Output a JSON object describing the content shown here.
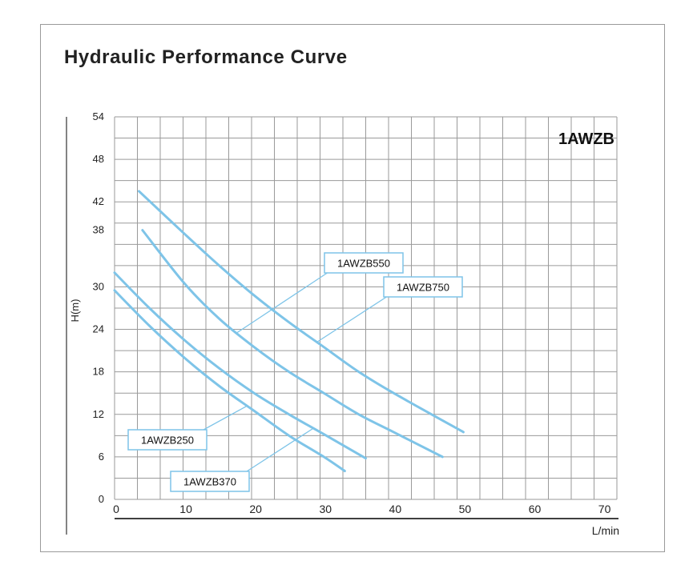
{
  "title": "Hydraulic Performance Curve",
  "chart_data": {
    "type": "line",
    "model_label": "1AWZB",
    "xlabel": "L/min",
    "ylabel": "H(m)",
    "xlim": [
      0,
      72
    ],
    "ylim": [
      0,
      54
    ],
    "x_ticks": [
      0,
      10,
      20,
      30,
      40,
      50,
      60,
      70
    ],
    "y_ticks": [
      0,
      6,
      12,
      18,
      24,
      30,
      38,
      42,
      48,
      54
    ],
    "grid": true,
    "curve_color": "#7ec4e8",
    "series": [
      {
        "name": "1AWZB250",
        "x": [
          0,
          5,
          10,
          15,
          20,
          25,
          30,
          33
        ],
        "y": [
          29.5,
          24.5,
          20,
          16,
          12.5,
          9,
          6,
          4
        ]
      },
      {
        "name": "1AWZB370",
        "x": [
          0,
          5,
          10,
          15,
          20,
          25,
          30,
          36
        ],
        "y": [
          32,
          27,
          22.5,
          18.5,
          15,
          12,
          9.2,
          5.8
        ]
      },
      {
        "name": "1AWZB550",
        "x": [
          4,
          10,
          15,
          20,
          25,
          30,
          35,
          40,
          47
        ],
        "y": [
          38,
          30.5,
          25.5,
          21.5,
          18,
          15,
          12,
          9.5,
          6
        ]
      },
      {
        "name": "1AWZB750",
        "x": [
          3.5,
          10,
          15,
          20,
          25,
          30,
          35,
          40,
          50
        ],
        "y": [
          43.5,
          37.5,
          33,
          28.8,
          25,
          21.5,
          18,
          15,
          9.5
        ]
      }
    ],
    "callouts": [
      {
        "text": "1AWZB550",
        "series": "1AWZB550"
      },
      {
        "text": "1AWZB750",
        "series": "1AWZB750"
      },
      {
        "text": "1AWZB250",
        "series": "1AWZB250"
      },
      {
        "text": "1AWZB370",
        "series": "1AWZB370"
      }
    ]
  }
}
